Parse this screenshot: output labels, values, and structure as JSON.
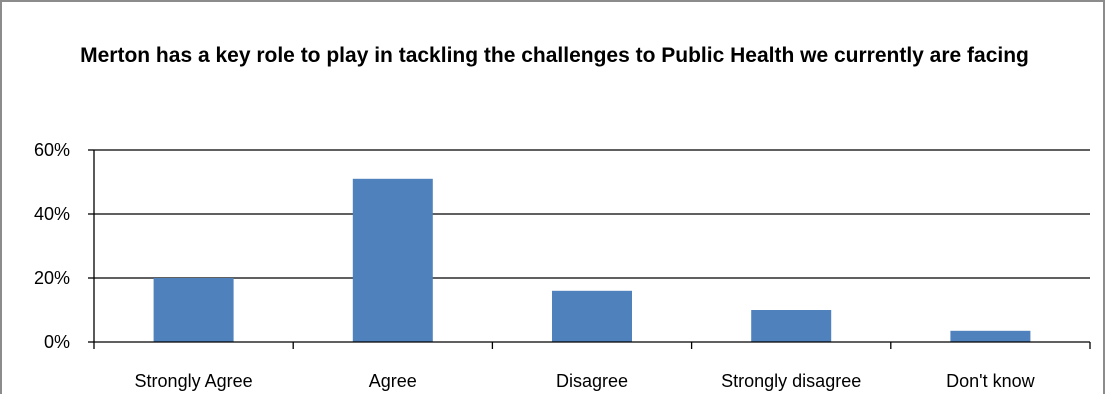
{
  "chart_data": {
    "type": "bar",
    "title": "Merton has a key role to play in tackling the challenges to Public Health we currently are facing",
    "categories": [
      "Strongly Agree",
      "Agree",
      "Disagree",
      "Strongly disagree",
      "Don't know"
    ],
    "values": [
      20,
      51,
      16,
      10,
      3.5
    ],
    "value_format": "percent",
    "ylim": [
      0,
      60
    ],
    "yticks": [
      0,
      20,
      40,
      60
    ],
    "ytick_labels": [
      "0%",
      "20%",
      "40%",
      "60%"
    ],
    "xlabel": "",
    "ylabel": "",
    "grid": "horizontal",
    "legend": "none",
    "bar_color": "#4F81BD"
  }
}
